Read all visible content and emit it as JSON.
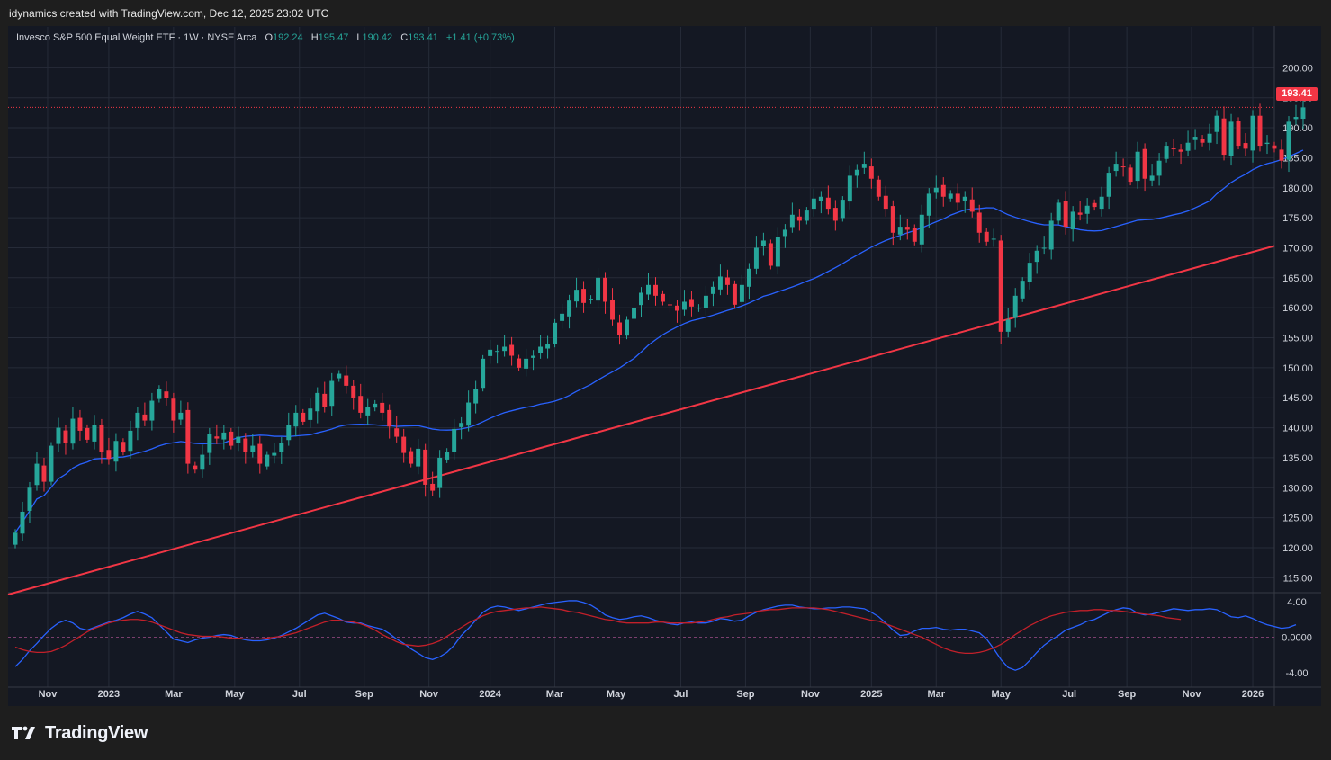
{
  "header": {
    "attribution": "idynamics created with TradingView.com, Dec 12, 2025 23:02 UTC"
  },
  "legend": {
    "symbol": "Invesco S&P 500 Equal Weight ETF · 1W · NYSE Arca",
    "o_label": "O",
    "o_value": "192.24",
    "h_label": "H",
    "h_value": "195.47",
    "l_label": "L",
    "l_value": "190.42",
    "c_label": "C",
    "c_value": "193.41",
    "change": "+1.41 (+0.73%)"
  },
  "last_price_label": "193.41",
  "footer": {
    "brand": "TradingView"
  },
  "colors": {
    "up": "#26a69a",
    "down": "#f23645",
    "ma": "#2962ff",
    "trend": "#f23645",
    "osc_fast": "#2962ff",
    "osc_slow": "#c2202a",
    "grid": "#262b38",
    "text": "#d1d4dc"
  },
  "chart_data": [
    {
      "type": "candlestick",
      "title": "",
      "y_ticks": [
        "200.00",
        "195.00",
        "190.00",
        "185.00",
        "180.00",
        "175.00",
        "170.00",
        "165.00",
        "160.00",
        "155.00",
        "150.00",
        "145.00",
        "140.00",
        "135.00",
        "130.00",
        "125.00",
        "120.00",
        "115.00"
      ],
      "ylim": [
        112.5,
        203.5
      ],
      "x_ticks": [
        "Nov",
        "2023",
        "Mar",
        "May",
        "Jul",
        "Sep",
        "Nov",
        "2024",
        "Mar",
        "May",
        "Jul",
        "Sep",
        "Nov",
        "2025",
        "Mar",
        "May",
        "Jul",
        "Sep",
        "Nov",
        "2026"
      ],
      "x_tick_pos": [
        4.5,
        13,
        22,
        30.5,
        39.5,
        48.5,
        57.5,
        66,
        75,
        83.5,
        92.5,
        101.5,
        110.5,
        119,
        128,
        137,
        146.5,
        154.5,
        163.5,
        172
      ],
      "xlim": [
        -1,
        175
      ],
      "close": [
        122.5,
        126.0,
        130.0,
        134.0,
        131.0,
        137.0,
        140.0,
        137.5,
        141.5,
        139.5,
        138.0,
        140.5,
        136.0,
        134.8,
        137.8,
        136.0,
        139.5,
        142.5,
        141.2,
        144.5,
        146.5,
        145.0,
        141.2,
        142.5,
        134.0,
        133.0,
        135.5,
        139.0,
        138.2,
        139.2,
        137.0,
        138.5,
        136.0,
        137.0,
        134.0,
        135.5,
        135.8,
        137.5,
        140.5,
        142.5,
        141.0,
        143.2,
        145.8,
        143.5,
        147.8,
        149.0,
        147.0,
        145.0,
        142.5,
        143.5,
        144.0,
        142.5,
        140.2,
        138.5,
        135.8,
        134.0,
        136.5,
        130.5,
        129.5,
        135.0,
        136.0,
        139.8,
        140.8,
        144.2,
        146.5,
        151.5,
        153.0,
        152.8,
        153.5,
        152.0,
        150.0,
        151.5,
        152.0,
        153.5,
        154.0,
        157.5,
        159.0,
        161.2,
        163.0,
        160.8,
        161.5,
        165.0,
        161.0,
        158.0,
        155.5,
        158.0,
        160.0,
        162.5,
        163.8,
        162.0,
        161.0,
        160.5,
        159.5,
        161.0,
        160.2,
        160.0,
        162.0,
        163.5,
        165.2,
        163.8,
        160.5,
        163.8,
        166.5,
        170.0,
        171.2,
        167.0,
        171.8,
        173.0,
        175.5,
        174.5,
        176.2,
        178.2,
        178.5,
        176.5,
        174.5,
        178.0,
        182.0,
        183.0,
        184.0,
        181.5,
        178.5,
        176.5,
        172.5,
        173.5,
        173.0,
        171.0,
        175.5,
        179.0,
        180.0,
        178.5,
        179.0,
        177.5,
        178.5,
        176.0,
        172.5,
        171.0,
        171.5,
        156.0,
        158.0,
        162.0,
        164.5,
        167.5,
        169.5,
        170.0,
        174.5,
        177.5,
        173.5,
        176.0,
        175.5,
        177.0,
        176.8,
        178.5,
        182.5,
        184.0,
        183.5,
        181.0,
        186.0,
        181.5,
        182.0,
        184.5,
        187.0,
        186.5,
        186.0,
        187.5,
        188.5,
        187.5,
        189.0,
        192.0,
        185.5,
        191.0,
        187.0,
        186.5,
        192.0,
        187.0,
        187.5,
        186.5,
        184.5,
        191.0,
        191.8,
        193.4
      ],
      "ma_note": "blue moving average line",
      "trendline": {
        "x": [
          -1.0,
          175.0
        ],
        "y": [
          112.2,
          170.3
        ]
      },
      "osc_ticks": [
        "4.00",
        "0.0000",
        "-4.00"
      ],
      "osc_ylim": [
        -5.6,
        5.0
      ],
      "osc_fast": [
        -3.3,
        -2.5,
        -1.5,
        -0.7,
        0.2,
        1.0,
        1.6,
        1.9,
        1.6,
        1.0,
        0.8,
        1.1,
        1.4,
        1.7,
        1.9,
        2.2,
        2.6,
        2.9,
        2.6,
        2.2,
        1.4,
        0.6,
        -0.2,
        -0.4,
        -0.6,
        -0.3,
        -0.1,
        0.0,
        0.2,
        0.3,
        0.2,
        -0.1,
        -0.3,
        -0.4,
        -0.4,
        -0.3,
        -0.1,
        0.2,
        0.6,
        1.0,
        1.5,
        2.0,
        2.5,
        2.7,
        2.4,
        2.1,
        1.7,
        1.6,
        1.6,
        1.3,
        1.1,
        0.9,
        0.4,
        -0.2,
        -0.7,
        -1.3,
        -1.8,
        -2.3,
        -2.5,
        -2.2,
        -1.7,
        -0.9,
        0.2,
        1.0,
        1.9,
        2.8,
        3.3,
        3.5,
        3.4,
        3.2,
        3.0,
        3.2,
        3.4,
        3.6,
        3.8,
        3.9,
        4.0,
        4.1,
        4.1,
        3.9,
        3.6,
        3.1,
        2.5,
        2.2,
        2.0,
        2.1,
        2.3,
        2.4,
        2.2,
        1.9,
        1.7,
        1.5,
        1.4,
        1.6,
        1.7,
        1.6,
        1.6,
        1.8,
        2.1,
        2.0,
        1.8,
        1.9,
        2.4,
        2.8,
        3.1,
        3.3,
        3.5,
        3.6,
        3.6,
        3.4,
        3.3,
        3.2,
        3.2,
        3.3,
        3.3,
        3.4,
        3.4,
        3.3,
        3.2,
        2.8,
        2.3,
        1.6,
        0.8,
        0.2,
        0.3,
        0.7,
        1.0,
        1.0,
        1.1,
        0.9,
        0.8,
        0.9,
        0.9,
        0.7,
        0.5,
        -0.2,
        -1.3,
        -2.5,
        -3.4,
        -3.7,
        -3.4,
        -2.6,
        -1.7,
        -0.9,
        -0.3,
        0.2,
        0.8,
        1.1,
        1.4,
        1.8,
        2.0,
        2.4,
        2.8,
        3.1,
        3.3,
        3.2,
        2.7,
        2.5,
        2.6,
        2.8,
        3.0,
        3.2,
        3.1,
        3.0,
        3.1,
        3.1,
        3.2,
        3.1,
        2.7,
        2.3,
        2.2,
        2.4,
        2.1,
        1.7,
        1.4,
        1.2,
        1.0,
        1.1,
        1.4
      ],
      "osc_slow": [
        -1.1,
        -1.4,
        -1.6,
        -1.7,
        -1.7,
        -1.6,
        -1.3,
        -0.9,
        -0.4,
        0.1,
        0.6,
        1.0,
        1.3,
        1.6,
        1.8,
        1.9,
        2.0,
        2.0,
        1.9,
        1.7,
        1.4,
        1.1,
        0.8,
        0.5,
        0.3,
        0.2,
        0.1,
        0.1,
        0.1,
        0.0,
        -0.1,
        -0.1,
        -0.2,
        -0.2,
        -0.2,
        -0.1,
        0.0,
        0.1,
        0.3,
        0.5,
        0.8,
        1.1,
        1.4,
        1.7,
        1.9,
        1.9,
        1.8,
        1.7,
        1.5,
        1.2,
        0.8,
        0.3,
        -0.1,
        -0.5,
        -0.8,
        -0.9,
        -1.0,
        -0.9,
        -0.7,
        -0.4,
        0.1,
        0.6,
        1.1,
        1.6,
        2.0,
        2.4,
        2.7,
        2.9,
        3.0,
        3.1,
        3.2,
        3.3,
        3.3,
        3.4,
        3.3,
        3.2,
        3.1,
        2.9,
        2.8,
        2.6,
        2.4,
        2.2,
        2.0,
        1.9,
        1.7,
        1.6,
        1.6,
        1.6,
        1.6,
        1.7,
        1.7,
        1.6,
        1.6,
        1.6,
        1.6,
        1.7,
        1.8,
        2.0,
        2.2,
        2.3,
        2.5,
        2.6,
        2.7,
        2.9,
        3.0,
        3.1,
        3.1,
        3.2,
        3.3,
        3.3,
        3.3,
        3.3,
        3.2,
        3.1,
        2.9,
        2.7,
        2.5,
        2.3,
        2.1,
        1.9,
        1.8,
        1.5,
        1.2,
        0.9,
        0.6,
        0.3,
        0.0,
        -0.4,
        -0.8,
        -1.2,
        -1.5,
        -1.7,
        -1.8,
        -1.8,
        -1.7,
        -1.5,
        -1.2,
        -0.8,
        -0.3,
        0.3,
        0.8,
        1.3,
        1.7,
        2.1,
        2.4,
        2.6,
        2.8,
        2.9,
        3.0,
        3.0,
        3.1,
        3.1,
        3.0,
        3.0,
        2.9,
        2.8,
        2.7,
        2.6,
        2.5,
        2.4,
        2.2,
        2.1,
        2.0
      ]
    }
  ]
}
